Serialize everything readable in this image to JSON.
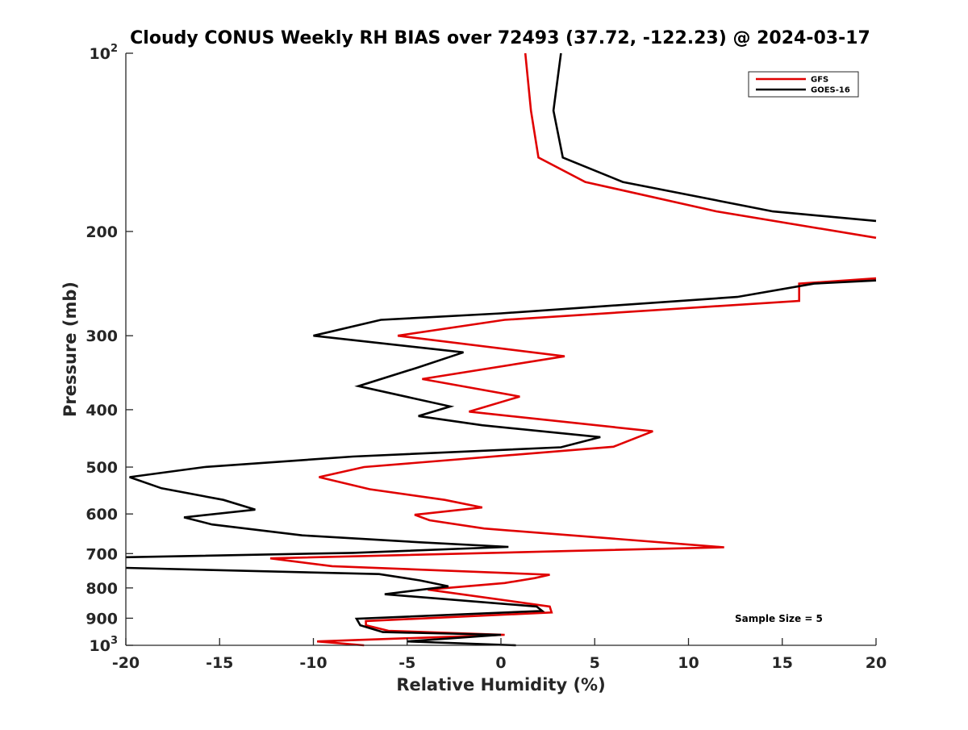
{
  "chart_data": {
    "type": "line",
    "title": "Cloudy CONUS Weekly RH BIAS over 72493 (37.72, -122.23) @ 2024-03-17",
    "xlabel": "Relative Humidity (%)",
    "ylabel": "Pressure (mb)",
    "xlim": [
      -20,
      20
    ],
    "ylim": [
      100,
      1000
    ],
    "yscale": "log",
    "yreversed": true,
    "grid": false,
    "legend_position": "top-right",
    "x_ticks": [
      -20,
      -15,
      -10,
      -5,
      0,
      5,
      10,
      15,
      20
    ],
    "x_tick_labels": [
      "-20",
      "-15",
      "-10",
      "-5",
      "0",
      "5",
      "10",
      "15",
      "20"
    ],
    "y_ticks": [
      100,
      200,
      300,
      400,
      500,
      600,
      700,
      800,
      900,
      1000
    ],
    "y_tick_labels": [
      {
        "base": "10",
        "sup": "2"
      },
      {
        "base": "200",
        "sup": ""
      },
      {
        "base": "300",
        "sup": ""
      },
      {
        "base": "400",
        "sup": ""
      },
      {
        "base": "500",
        "sup": ""
      },
      {
        "base": "600",
        "sup": ""
      },
      {
        "base": "700",
        "sup": ""
      },
      {
        "base": "800",
        "sup": ""
      },
      {
        "base": "900",
        "sup": ""
      },
      {
        "base": "10",
        "sup": "3"
      }
    ],
    "annotation": "Sample Size = 5",
    "series": [
      {
        "name": "GFS",
        "color": "#e00000",
        "segments": [
          [
            {
              "x": 1.3,
              "p": 100
            },
            {
              "x": 1.6,
              "p": 125
            },
            {
              "x": 2.0,
              "p": 150
            },
            {
              "x": 4.5,
              "p": 165
            },
            {
              "x": 11.5,
              "p": 185
            },
            {
              "x": 20.0,
              "p": 205
            }
          ],
          [
            {
              "x": 20.0,
              "p": 240
            },
            {
              "x": 15.9,
              "p": 245
            },
            {
              "x": 15.9,
              "p": 262
            },
            {
              "x": 0.2,
              "p": 282
            },
            {
              "x": -5.5,
              "p": 300
            },
            {
              "x": 3.4,
              "p": 325
            },
            {
              "x": -4.2,
              "p": 355
            },
            {
              "x": 1.0,
              "p": 380
            },
            {
              "x": -1.7,
              "p": 403
            },
            {
              "x": 8.1,
              "p": 435
            },
            {
              "x": 6.0,
              "p": 462
            },
            {
              "x": -7.3,
              "p": 500
            },
            {
              "x": -9.7,
              "p": 520
            },
            {
              "x": -7.0,
              "p": 545
            },
            {
              "x": -3.0,
              "p": 568
            },
            {
              "x": -1.0,
              "p": 585
            },
            {
              "x": -4.6,
              "p": 602
            },
            {
              "x": -3.8,
              "p": 615
            },
            {
              "x": -0.9,
              "p": 635
            },
            {
              "x": 11.9,
              "p": 683
            },
            {
              "x": 3.6,
              "p": 693
            },
            {
              "x": -12.3,
              "p": 713
            },
            {
              "x": -9.0,
              "p": 735
            },
            {
              "x": 2.6,
              "p": 760
            },
            {
              "x": 1.8,
              "p": 770
            },
            {
              "x": 0.2,
              "p": 785
            },
            {
              "x": -3.9,
              "p": 805
            },
            {
              "x": 2.6,
              "p": 860
            },
            {
              "x": 2.7,
              "p": 880
            },
            {
              "x": -7.2,
              "p": 910
            },
            {
              "x": -7.2,
              "p": 925
            },
            {
              "x": -6.0,
              "p": 945
            },
            {
              "x": 0.2,
              "p": 960
            },
            {
              "x": -9.8,
              "p": 985
            },
            {
              "x": -7.3,
              "p": 1000
            }
          ]
        ]
      },
      {
        "name": "GOES-16",
        "color": "#000000",
        "segments": [
          [
            {
              "x": 3.2,
              "p": 100
            },
            {
              "x": 2.8,
              "p": 125
            },
            {
              "x": 3.3,
              "p": 150
            },
            {
              "x": 6.5,
              "p": 165
            },
            {
              "x": 14.5,
              "p": 185
            },
            {
              "x": 20.0,
              "p": 192
            }
          ],
          [
            {
              "x": 20.0,
              "p": 242
            },
            {
              "x": 16.7,
              "p": 245
            },
            {
              "x": 12.6,
              "p": 258
            },
            {
              "x": 0.0,
              "p": 275
            },
            {
              "x": -6.4,
              "p": 282
            },
            {
              "x": -10.0,
              "p": 300
            },
            {
              "x": -2.0,
              "p": 320
            },
            {
              "x": -4.5,
              "p": 340
            },
            {
              "x": -7.6,
              "p": 365
            },
            {
              "x": -2.7,
              "p": 395
            },
            {
              "x": -4.4,
              "p": 410
            },
            {
              "x": -1.0,
              "p": 425
            },
            {
              "x": 5.3,
              "p": 445
            },
            {
              "x": 3.2,
              "p": 463
            },
            {
              "x": -7.9,
              "p": 480
            },
            {
              "x": -15.8,
              "p": 500
            },
            {
              "x": -19.8,
              "p": 520
            },
            {
              "x": -18.1,
              "p": 543
            },
            {
              "x": -14.8,
              "p": 568
            },
            {
              "x": -13.1,
              "p": 590
            },
            {
              "x": -16.9,
              "p": 608
            },
            {
              "x": -15.4,
              "p": 625
            },
            {
              "x": -10.6,
              "p": 652
            },
            {
              "x": -4.3,
              "p": 670
            },
            {
              "x": 0.4,
              "p": 682
            },
            {
              "x": -7.9,
              "p": 698
            },
            {
              "x": -20.0,
              "p": 710
            }
          ],
          [
            {
              "x": -20.0,
              "p": 740
            },
            {
              "x": -6.5,
              "p": 758
            },
            {
              "x": -4.3,
              "p": 777
            },
            {
              "x": -2.8,
              "p": 795
            },
            {
              "x": -6.2,
              "p": 820
            },
            {
              "x": 1.9,
              "p": 860
            },
            {
              "x": 2.2,
              "p": 875
            },
            {
              "x": -7.7,
              "p": 902
            },
            {
              "x": -7.5,
              "p": 925
            },
            {
              "x": -6.3,
              "p": 950
            },
            {
              "x": 0.0,
              "p": 960
            },
            {
              "x": -5.0,
              "p": 985
            },
            {
              "x": 0.8,
              "p": 1000
            }
          ]
        ]
      }
    ]
  }
}
